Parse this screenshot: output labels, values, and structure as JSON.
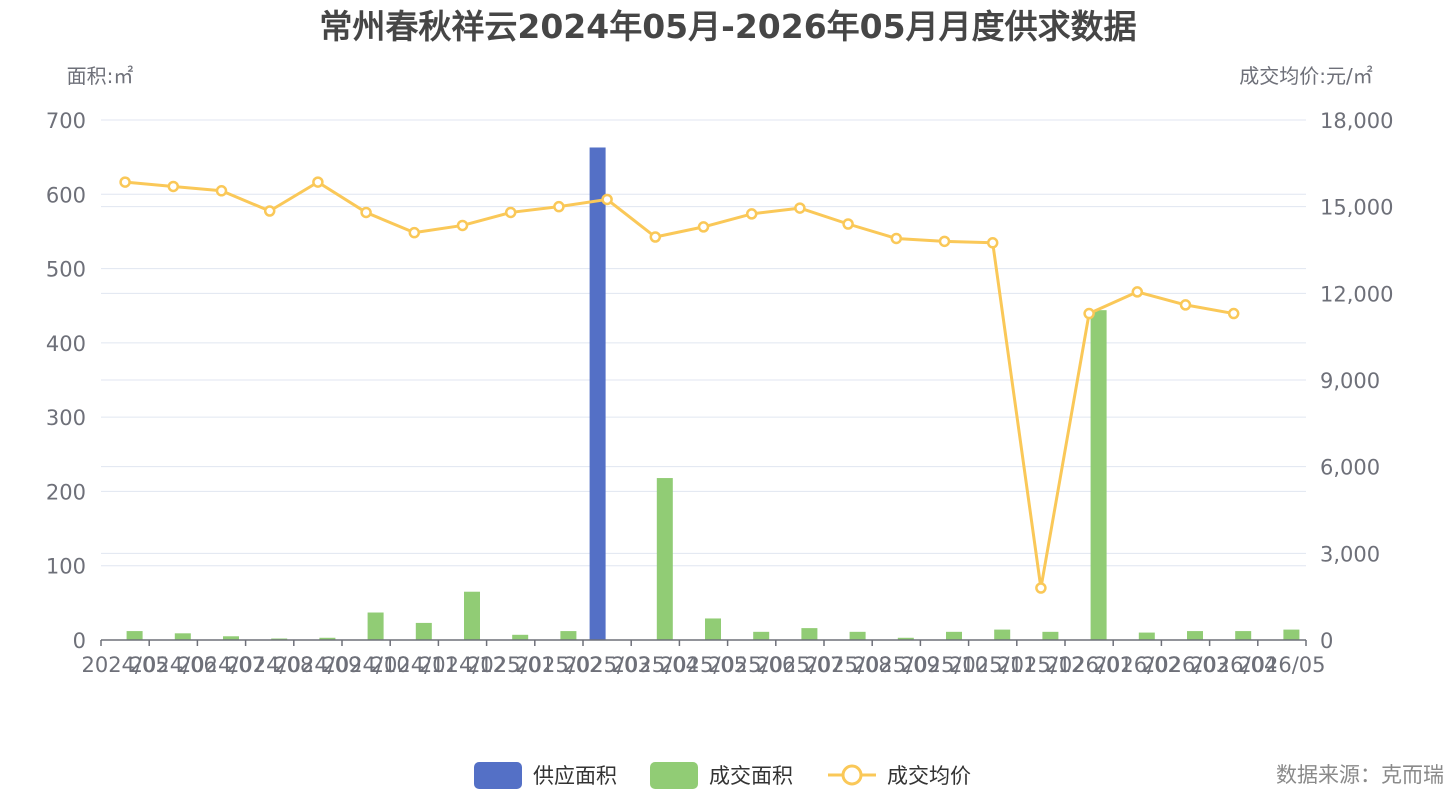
{
  "chart_data": {
    "type": "bar",
    "title": "常州春秋祥云2024年05月-2026年05月月度供求数据",
    "y_left_label": "面积:㎡",
    "y_right_label": "成交均价:元/㎡",
    "y_left_range": [
      0,
      700
    ],
    "y_left_ticks": [
      "0",
      "100",
      "200",
      "300",
      "400",
      "500",
      "600",
      "700"
    ],
    "y_right_range": [
      0,
      18000
    ],
    "y_right_ticks": [
      "0",
      "3,000",
      "6,000",
      "9,000",
      "12,000",
      "15,000",
      "18,000"
    ],
    "grid": true,
    "legend_position": "bottom",
    "categories": [
      "2024/05",
      "2024/06",
      "2024/07",
      "2024/08",
      "2024/09",
      "2024/10",
      "2024/11",
      "2024/12",
      "2025/01",
      "2025/02",
      "2025/03",
      "2025/04",
      "2025/05",
      "2025/06",
      "2025/07",
      "2025/08",
      "2025/09",
      "2025/10",
      "2025/11",
      "2025/12",
      "2026/01",
      "2026/02",
      "2026/03",
      "2026/04",
      "2026/05"
    ],
    "series": [
      {
        "name": "供应面积",
        "kind": "bar",
        "axis": "left",
        "color": "#5470c6",
        "values": [
          0,
          0,
          0,
          0,
          0,
          0,
          0,
          0,
          0,
          0,
          663,
          0,
          0,
          0,
          0,
          0,
          0,
          0,
          0,
          0,
          0,
          0,
          0,
          0,
          0
        ]
      },
      {
        "name": "成交面积",
        "kind": "bar",
        "axis": "left",
        "color": "#91cc75",
        "values": [
          12,
          9,
          5,
          2,
          3,
          37,
          23,
          65,
          7,
          12,
          0,
          218,
          29,
          11,
          16,
          11,
          3,
          11,
          14,
          11,
          444,
          10,
          12,
          12,
          14
        ]
      },
      {
        "name": "成交均价",
        "kind": "line",
        "axis": "right",
        "color": "#fac858",
        "values": [
          15850,
          15700,
          15550,
          14850,
          15850,
          14800,
          14100,
          14350,
          14800,
          15000,
          15250,
          13950,
          14300,
          14750,
          14950,
          14400,
          13900,
          13800,
          13750,
          1800,
          11300,
          12050,
          11600,
          11300,
          null
        ]
      }
    ]
  },
  "source": "数据来源：克而瑞"
}
